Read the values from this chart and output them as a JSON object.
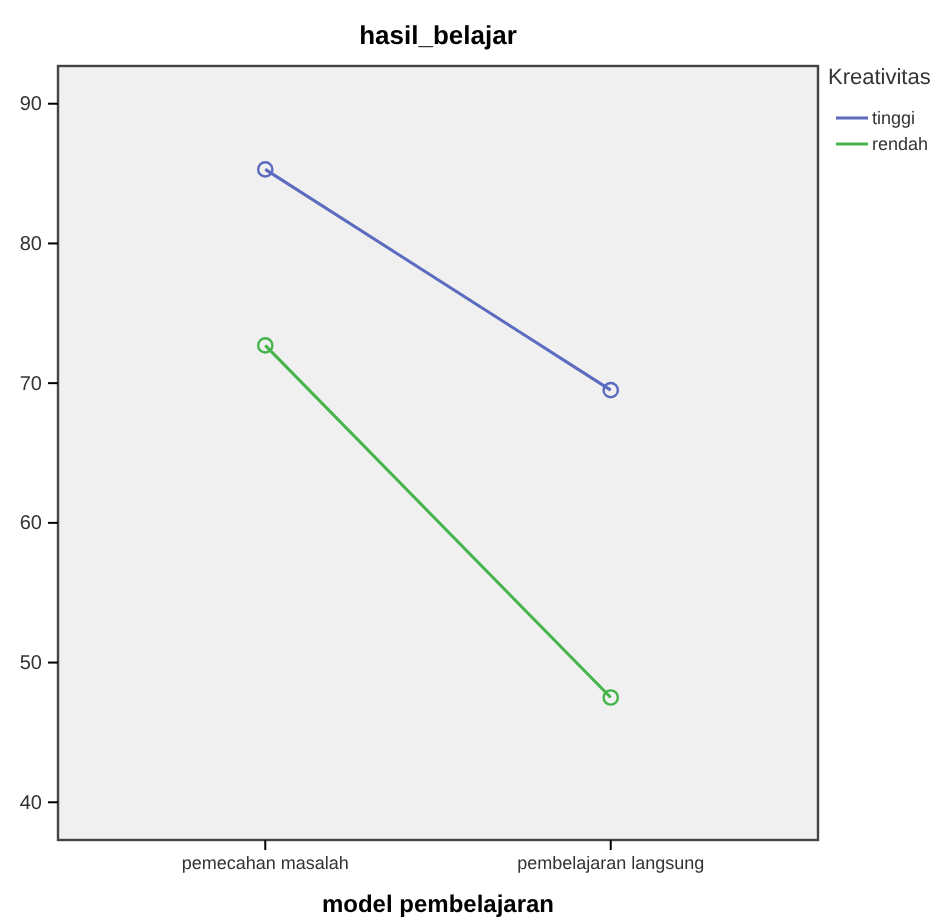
{
  "chart_data": {
    "type": "line",
    "title": "hasil_belajar",
    "xlabel": "model pembelajaran",
    "legend_title": "Kreativitas",
    "categories": [
      "pemecahan masalah",
      "pembelajaran langsung"
    ],
    "series": [
      {
        "name": "tinggi",
        "color": "#5b6bbf",
        "values": [
          85.3,
          69.5
        ]
      },
      {
        "name": "rendah",
        "color": "#45b44b",
        "values": [
          72.7,
          47.5
        ]
      }
    ],
    "ylim": [
      37.3,
      92.7
    ],
    "yticks": [
      40,
      50,
      60,
      70,
      80,
      90
    ],
    "legend": "right",
    "marker": "circle",
    "grid": false
  }
}
